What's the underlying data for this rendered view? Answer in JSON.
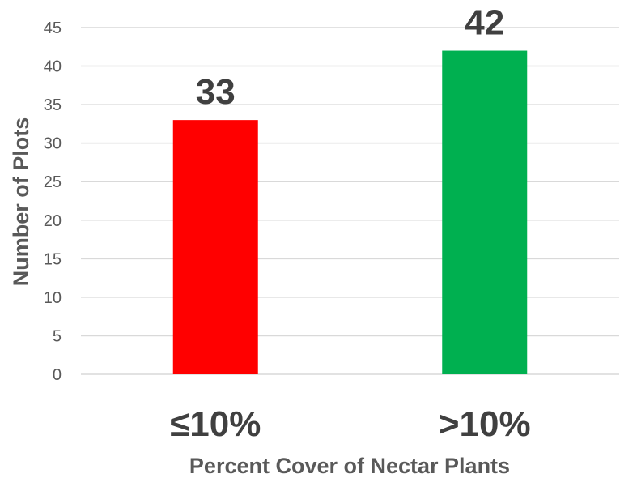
{
  "chart_data": {
    "type": "bar",
    "title": "",
    "xlabel": "Percent Cover of Nectar Plants",
    "ylabel": "Number of Plots",
    "categories": [
      "≤10%",
      ">10%"
    ],
    "values": [
      33,
      42
    ],
    "colors": [
      "#ff0000",
      "#00b050"
    ],
    "ylim": [
      0,
      45
    ],
    "yticks": [
      0,
      5,
      10,
      15,
      20,
      25,
      30,
      35,
      40,
      45
    ],
    "grid": true,
    "legend": "none",
    "data_labels": true
  }
}
